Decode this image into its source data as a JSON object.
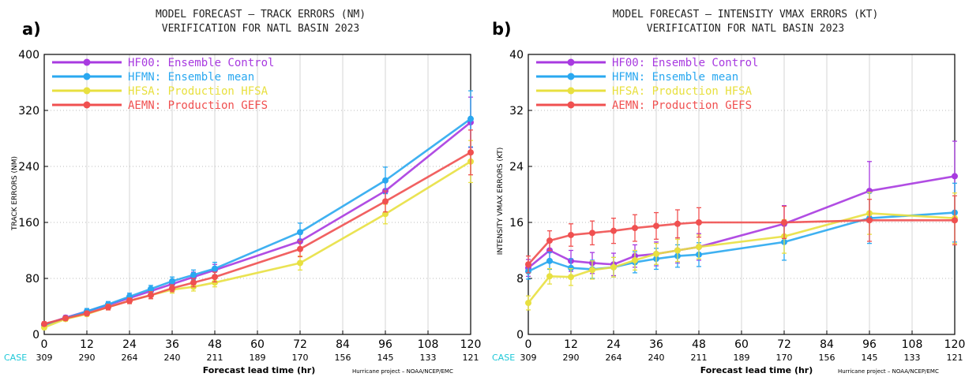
{
  "panels": [
    {
      "letter": "a)",
      "title_line1": "MODEL FORECAST – TRACK ERRORS (NM)",
      "title_line2": "VERIFICATION FOR NATL BASIN 2023",
      "ylabel": "TRACK ERRORS (NM)",
      "xlabel": "Forecast lead time (hr)",
      "case_label": "CASE",
      "credit": "Hurricane project – NOAA/NCEP/EMC"
    },
    {
      "letter": "b)",
      "title_line1": "MODEL FORECAST – INTENSITY VMAX ERRORS (KT)",
      "title_line2": "VERIFICATION FOR NATL BASIN 2023",
      "ylabel": "INTENSITY VMAX ERRORS (KT)",
      "xlabel": "Forecast lead time (hr)",
      "case_label": "CASE",
      "credit": "Hurricane project – NOAA/NCEP/EMC"
    }
  ],
  "chart_data": [
    {
      "type": "line",
      "title": "MODEL FORECAST – TRACK ERRORS (NM)",
      "subtitle": "VERIFICATION FOR NATL BASIN 2023",
      "xlabel": "Forecast lead time (hr)",
      "ylabel": "TRACK ERRORS (NM)",
      "xlim": [
        0,
        120
      ],
      "ylim": [
        0,
        400
      ],
      "xticks": [
        0,
        12,
        24,
        36,
        48,
        60,
        72,
        84,
        96,
        108,
        120
      ],
      "yticks": [
        0,
        80,
        160,
        240,
        320,
        400
      ],
      "cases": [
        "309",
        "290",
        "264",
        "240",
        "211",
        "189",
        "170",
        "156",
        "145",
        "133",
        "121"
      ],
      "legend_position": "top-left",
      "series": [
        {
          "name": "HF00: Ensemble Control",
          "color": "#a83ae0",
          "x": [
            0,
            6,
            12,
            18,
            24,
            30,
            36,
            42,
            48,
            72,
            96,
            120
          ],
          "y": [
            14,
            24,
            33,
            42,
            52,
            62,
            72,
            82,
            92,
            133,
            205,
            303
          ],
          "err": [
            3,
            3,
            4,
            4,
            5,
            5,
            6,
            7,
            8,
            12,
            16,
            36
          ]
        },
        {
          "name": "HFMN: Ensemble mean",
          "color": "#2aa8f0",
          "x": [
            0,
            6,
            12,
            18,
            24,
            30,
            36,
            42,
            48,
            72,
            96,
            120
          ],
          "y": [
            13,
            23,
            33,
            43,
            54,
            65,
            76,
            85,
            94,
            146,
            220,
            308
          ],
          "err": [
            3,
            3,
            4,
            4,
            5,
            5,
            6,
            7,
            9,
            13,
            19,
            40
          ]
        },
        {
          "name": "HFSA: Production HFSA",
          "color": "#e8e040",
          "x": [
            0,
            6,
            12,
            18,
            24,
            30,
            36,
            42,
            48,
            72,
            96,
            120
          ],
          "y": [
            10,
            22,
            29,
            39,
            48,
            56,
            64,
            68,
            74,
            102,
            172,
            247
          ],
          "err": [
            3,
            3,
            3,
            4,
            4,
            5,
            5,
            6,
            6,
            10,
            14,
            30
          ]
        },
        {
          "name": "AEMN: Production GEFS",
          "color": "#f05050",
          "x": [
            0,
            6,
            12,
            18,
            24,
            30,
            36,
            42,
            48,
            72,
            96,
            120
          ],
          "y": [
            15,
            23,
            30,
            39,
            48,
            56,
            66,
            74,
            82,
            122,
            190,
            260
          ],
          "err": [
            3,
            3,
            3,
            4,
            4,
            5,
            5,
            6,
            7,
            11,
            15,
            32
          ]
        }
      ]
    },
    {
      "type": "line",
      "title": "MODEL FORECAST – INTENSITY VMAX ERRORS (KT)",
      "subtitle": "VERIFICATION FOR NATL BASIN 2023",
      "xlabel": "Forecast lead time (hr)",
      "ylabel": "INTENSITY VMAX ERRORS (KT)",
      "xlim": [
        0,
        120
      ],
      "ylim": [
        0,
        40
      ],
      "xticks": [
        0,
        12,
        24,
        36,
        48,
        60,
        72,
        84,
        96,
        108,
        120
      ],
      "yticks": [
        0,
        8,
        16,
        24,
        32,
        40
      ],
      "cases": [
        "309",
        "290",
        "264",
        "240",
        "211",
        "189",
        "170",
        "156",
        "145",
        "133",
        "121"
      ],
      "legend_position": "top-left",
      "series": [
        {
          "name": "HF00: Ensemble Control",
          "color": "#a83ae0",
          "x": [
            0,
            6,
            12,
            18,
            24,
            30,
            36,
            42,
            48,
            72,
            96,
            120
          ],
          "y": [
            9.5,
            12.0,
            10.5,
            10.2,
            10.0,
            11.2,
            11.5,
            12.0,
            12.5,
            15.8,
            20.5,
            22.6
          ],
          "err": [
            1.2,
            1.4,
            1.5,
            1.5,
            1.6,
            1.6,
            1.7,
            1.8,
            1.9,
            2.6,
            4.2,
            5.0
          ]
        },
        {
          "name": "HFMN: Ensemble mean",
          "color": "#2aa8f0",
          "x": [
            0,
            6,
            12,
            18,
            24,
            30,
            36,
            42,
            48,
            72,
            96,
            120
          ],
          "y": [
            9.0,
            10.5,
            9.5,
            9.3,
            9.6,
            10.3,
            10.8,
            11.2,
            11.4,
            13.2,
            16.6,
            17.4
          ],
          "err": [
            1.1,
            1.2,
            1.3,
            1.3,
            1.4,
            1.5,
            1.5,
            1.6,
            1.7,
            2.6,
            3.6,
            4.2
          ]
        },
        {
          "name": "HFSA: Production HFSA",
          "color": "#e8e040",
          "x": [
            0,
            6,
            12,
            18,
            24,
            30,
            36,
            42,
            48,
            72,
            96,
            120
          ],
          "y": [
            4.5,
            8.3,
            8.2,
            9.2,
            9.6,
            10.6,
            11.5,
            12.0,
            12.5,
            14.0,
            17.3,
            16.6
          ],
          "err": [
            1.0,
            1.1,
            1.2,
            1.3,
            1.4,
            1.4,
            1.5,
            1.6,
            1.7,
            2.4,
            3.0,
            3.6
          ]
        },
        {
          "name": "AEMN: Production GEFS",
          "color": "#f05050",
          "x": [
            0,
            6,
            12,
            18,
            24,
            30,
            36,
            42,
            48,
            72,
            96,
            120
          ],
          "y": [
            10.0,
            13.4,
            14.2,
            14.5,
            14.8,
            15.2,
            15.5,
            15.8,
            16.0,
            16.0,
            16.3,
            16.3
          ],
          "err": [
            1.2,
            1.4,
            1.6,
            1.7,
            1.8,
            1.9,
            1.9,
            2.0,
            2.1,
            2.3,
            3.0,
            3.5
          ]
        }
      ]
    }
  ]
}
